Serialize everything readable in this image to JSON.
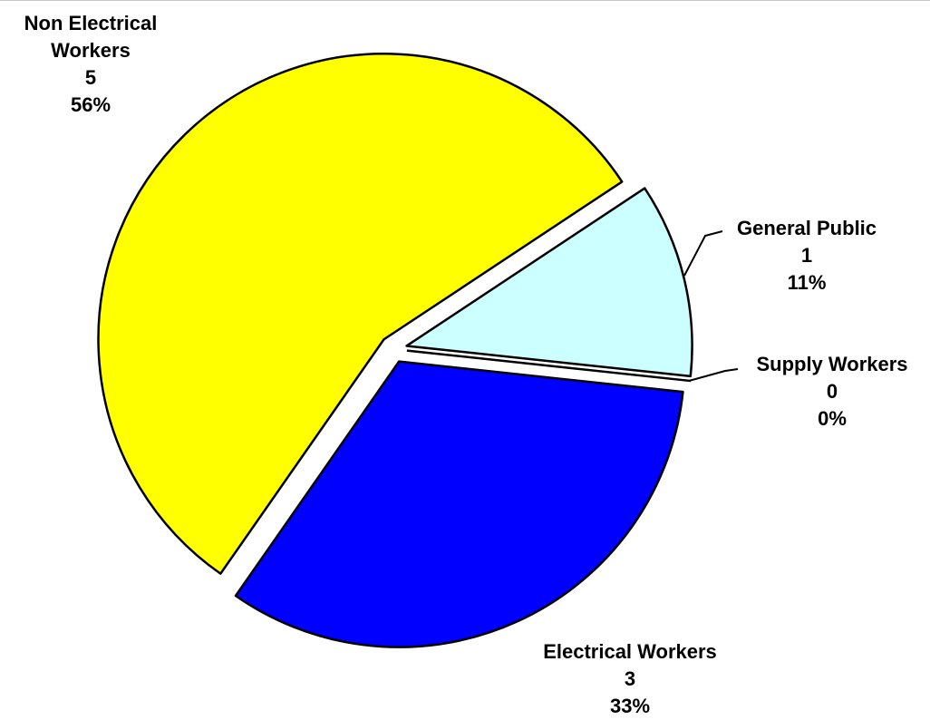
{
  "chart_data": {
    "type": "pie",
    "categories": [
      "General Public",
      "Supply Workers",
      "Electrical Workers",
      "Non Electrical Workers"
    ],
    "counts": [
      1,
      0,
      3,
      5
    ],
    "values": [
      11,
      0,
      33,
      56
    ],
    "value_labels": [
      "11%",
      "0%",
      "33%",
      "56%"
    ],
    "colors": [
      "#ccffff",
      "#ffffff",
      "#0000ff",
      "#ffff00"
    ]
  }
}
